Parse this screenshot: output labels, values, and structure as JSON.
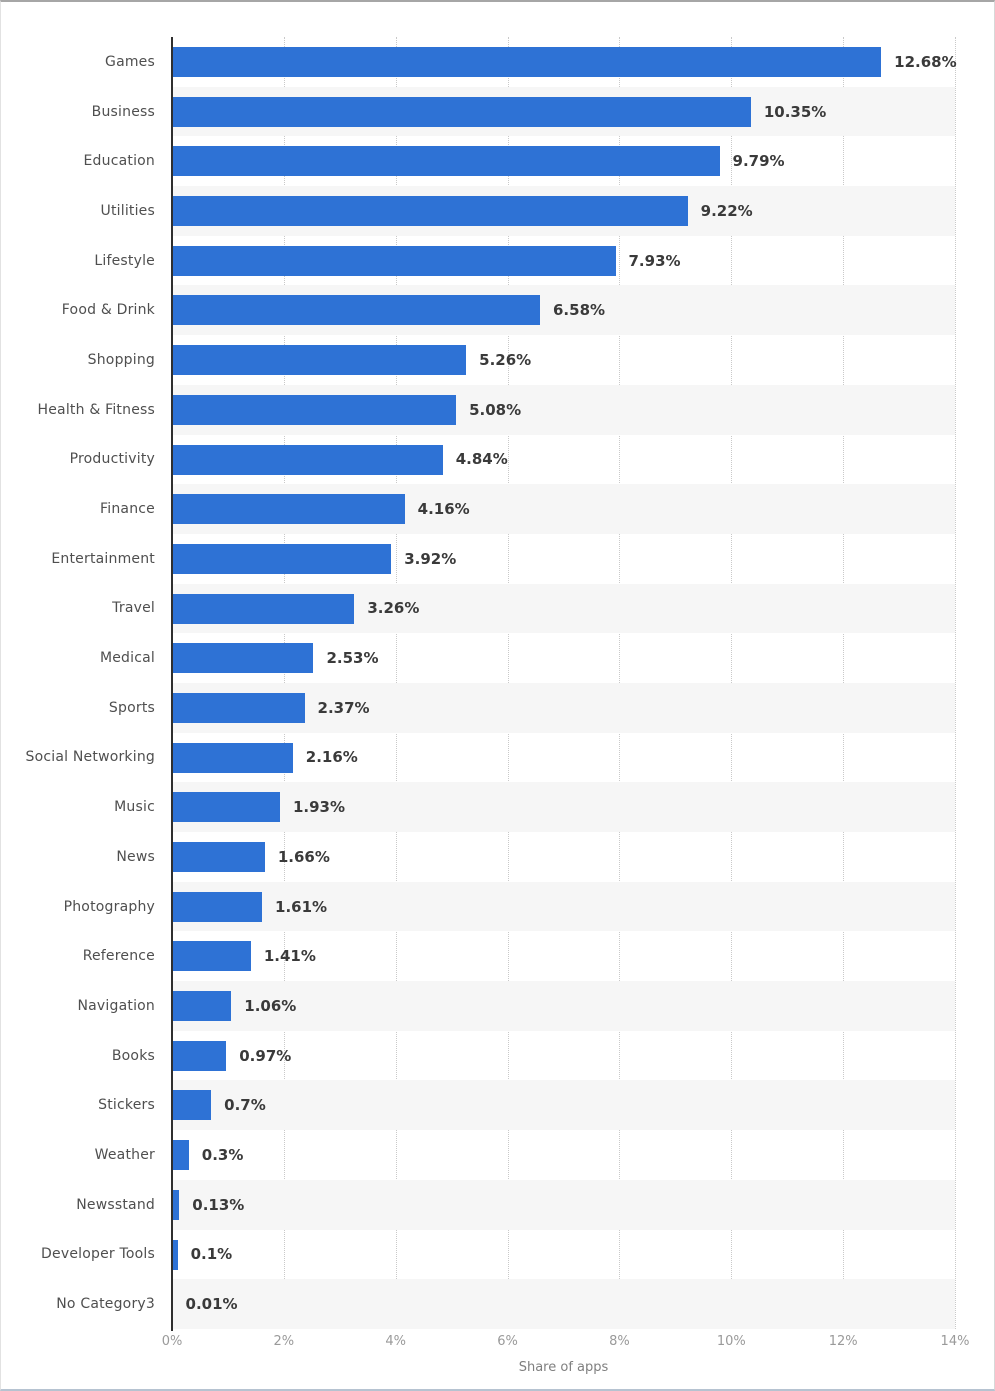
{
  "frame": {
    "background": "#ffffff",
    "border_color": "#d8d8d8",
    "bottom_border_color": "#b6c3d1"
  },
  "chart_data": {
    "type": "bar",
    "orientation": "horizontal",
    "title": "",
    "xlabel": "Share of apps",
    "ylabel": "",
    "xlim": [
      0,
      14
    ],
    "x_ticks": [
      "0%",
      "2%",
      "4%",
      "6%",
      "8%",
      "10%",
      "12%",
      "14%"
    ],
    "x_tick_values": [
      0,
      2,
      4,
      6,
      8,
      10,
      12,
      14
    ],
    "grid": "vertical-dotted",
    "legend_position": "none",
    "bar_color": "#2e72d5",
    "row_stripe_color": "#f6f6f6",
    "axis_line_color": "#2f2f2f",
    "categories": [
      "Games",
      "Business",
      "Education",
      "Utilities",
      "Lifestyle",
      "Food & Drink",
      "Shopping",
      "Health & Fitness",
      "Productivity",
      "Finance",
      "Entertainment",
      "Travel",
      "Medical",
      "Sports",
      "Social Networking",
      "Music",
      "News",
      "Photography",
      "Reference",
      "Navigation",
      "Books",
      "Stickers",
      "Weather",
      "Newsstand",
      "Developer Tools",
      "No Category3"
    ],
    "values": [
      12.68,
      10.35,
      9.79,
      9.22,
      7.93,
      6.58,
      5.26,
      5.08,
      4.84,
      4.16,
      3.92,
      3.26,
      2.53,
      2.37,
      2.16,
      1.93,
      1.66,
      1.61,
      1.41,
      1.06,
      0.97,
      0.7,
      0.3,
      0.13,
      0.1,
      0.01
    ],
    "value_labels": [
      "12.68%",
      "10.35%",
      "9.79%",
      "9.22%",
      "7.93%",
      "6.58%",
      "5.26%",
      "5.08%",
      "4.84%",
      "4.16%",
      "3.92%",
      "3.26%",
      "2.53%",
      "2.37%",
      "2.16%",
      "1.93%",
      "1.66%",
      "1.61%",
      "1.41%",
      "1.06%",
      "0.97%",
      "0.7%",
      "0.3%",
      "0.13%",
      "0.1%",
      "0.01%"
    ]
  }
}
